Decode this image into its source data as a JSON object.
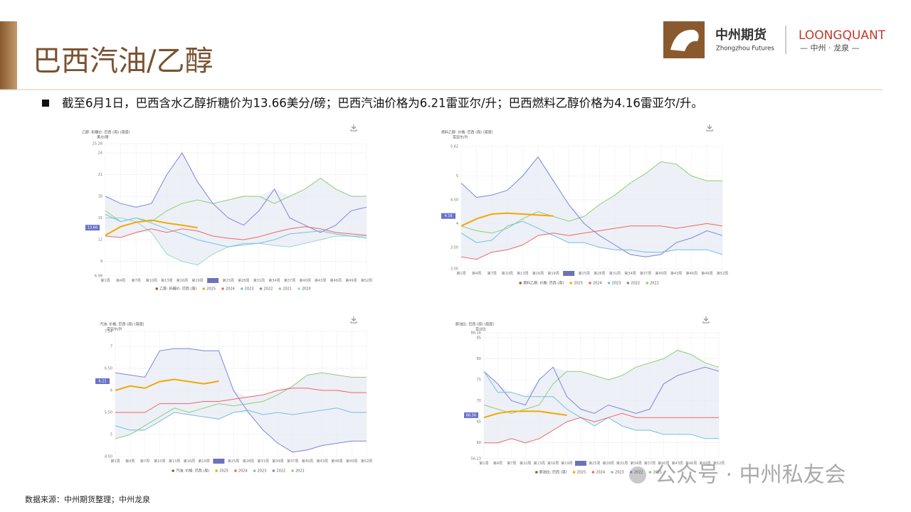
{
  "header": {
    "title": "巴西汽油/乙醇",
    "logo_cn": "中州期货",
    "logo_en": "Zhongzhou Futures",
    "logo2_en": "LOONGQUANT",
    "logo2_cn": "— 中州 · 龙泉 —"
  },
  "bullet": "截至6月1日，巴西含水乙醇折糖价为13.66美分/磅；巴西汽油价格为6.21雷亚尔/升；巴西燃料乙醇价格为4.16雷亚尔/升。",
  "source": "数据来源：中州期货整理；中州龙泉",
  "watermark": "公众号 · 中州私友会",
  "chart_data": [
    {
      "type": "line",
      "title": "乙醇: 折糖价: 巴西 (周) (周度)",
      "unit": "美分/磅",
      "legend_label": "乙醇: 折糖价: 巴西 (周)",
      "legend_color": "#a0522d",
      "categories": [
        "第1周",
        "第4周",
        "第7周",
        "第10周",
        "第13周",
        "第16周",
        "第19周",
        "第22周",
        "第25周",
        "第28周",
        "第31周",
        "第34周",
        "第37周",
        "第40周",
        "第43周",
        "第46周",
        "第49周",
        "第52周"
      ],
      "ylim": [
        6.99,
        25.28
      ],
      "yticks": [
        6.99,
        9,
        12,
        15,
        18,
        21,
        24,
        25.28
      ],
      "grid": true,
      "series": [
        {
          "name": "2025",
          "color": "#f2a900",
          "values": [
            12.6,
            13.8,
            14.4,
            14.7,
            14.3,
            14.0,
            13.66,
            null,
            null,
            null,
            null,
            null,
            null,
            null,
            null,
            null,
            null,
            null
          ]
        },
        {
          "name": "2024",
          "color": "#ee6666",
          "values": [
            12.5,
            12.3,
            13,
            13.5,
            13,
            13.5,
            13.2,
            12.5,
            12.2,
            12,
            12.4,
            13,
            13.5,
            13.8,
            13.5,
            13,
            12.8,
            12.6
          ]
        },
        {
          "name": "2023",
          "color": "#73c0de",
          "values": [
            15.5,
            14.5,
            15,
            14.3,
            13.5,
            12.8,
            12,
            11.5,
            11,
            11.3,
            11.5,
            12,
            12.8,
            13,
            13.2,
            12.8,
            12.5,
            12.2
          ]
        },
        {
          "name": "2022",
          "color": "#7f84d6",
          "values": [
            18,
            17,
            16.5,
            17,
            21,
            24,
            20,
            17,
            15,
            14,
            16,
            19,
            15,
            14,
            13,
            14,
            16,
            16.5
          ]
        },
        {
          "name": "2021",
          "color": "#91cc75",
          "values": [
            16,
            14.5,
            15,
            14.5,
            16,
            17,
            17.5,
            17,
            17.5,
            18,
            18,
            17,
            18,
            19,
            20.5,
            19,
            18,
            18
          ]
        },
        {
          "name": "2020",
          "color": "#9ad6c8",
          "values": [
            15,
            15,
            14.5,
            13,
            10,
            9,
            8.5,
            10,
            11,
            11.5,
            11.5,
            11.2,
            11,
            11.5,
            12,
            12.5,
            12.5,
            12.5
          ]
        }
      ]
    },
    {
      "type": "line",
      "title": "燃料乙醇: 价格: 巴西 (周) (周度)",
      "unit": "雷亚尔/升",
      "legend_label": "燃料乙醇: 价格: 巴西 (周)",
      "legend_color": "#a0522d",
      "categories": [
        "第1周",
        "第4周",
        "第7周",
        "第10周",
        "第13周",
        "第16周",
        "第19周",
        "第22周",
        "第25周",
        "第28周",
        "第31周",
        "第34周",
        "第37周",
        "第40周",
        "第43周",
        "第46周",
        "第49周",
        "第52周"
      ],
      "ylim": [
        3.05,
        5.62
      ],
      "yticks": [
        3.05,
        {
          "value": 3.5,
          "label": "3.50"
        },
        4,
        {
          "value": 4.5,
          "label": "4.50"
        },
        5,
        5.62
      ],
      "grid": true,
      "series": [
        {
          "name": "2025",
          "color": "#f2a900",
          "values": [
            3.95,
            4.1,
            4.2,
            4.22,
            4.2,
            4.18,
            4.16,
            null,
            null,
            null,
            null,
            null,
            null,
            null,
            null,
            null,
            null,
            null
          ]
        },
        {
          "name": "2024",
          "color": "#ee6666",
          "values": [
            3.3,
            3.25,
            3.4,
            3.45,
            3.55,
            3.75,
            3.8,
            3.75,
            3.8,
            3.85,
            3.9,
            3.95,
            3.95,
            3.95,
            3.9,
            3.95,
            4.0,
            3.95
          ]
        },
        {
          "name": "2023",
          "color": "#73c0de",
          "values": [
            3.8,
            3.6,
            3.65,
            3.95,
            4.05,
            3.9,
            3.75,
            3.6,
            3.6,
            3.5,
            3.45,
            3.45,
            3.4,
            3.4,
            3.45,
            3.45,
            3.45,
            3.35
          ]
        },
        {
          "name": "2022",
          "color": "#7f84d6",
          "values": [
            4.85,
            4.55,
            4.6,
            4.7,
            5.0,
            5.4,
            4.9,
            4.4,
            4.0,
            3.75,
            3.55,
            3.35,
            3.3,
            3.35,
            3.6,
            3.7,
            3.85,
            3.75
          ]
        },
        {
          "name": "2021",
          "color": "#91cc75",
          "values": [
            3.95,
            3.85,
            3.8,
            3.9,
            4.1,
            4.25,
            4.15,
            4.05,
            4.15,
            4.4,
            4.6,
            4.85,
            5.05,
            5.3,
            5.25,
            5.0,
            4.9,
            4.9
          ]
        }
      ]
    },
    {
      "type": "line",
      "title": "汽油: 价格: 巴西 (周) (周度)",
      "unit": "雷亚尔/升",
      "legend_label": "汽油: 价格: 巴西 (周)",
      "legend_color": "#a0522d",
      "categories": [
        "第1周",
        "第4周",
        "第7周",
        "第10周",
        "第13周",
        "第16周",
        "第19周",
        "第22周",
        "第25周",
        "第28周",
        "第31周",
        "第34周",
        "第37周",
        "第40周",
        "第43周",
        "第46周",
        "第49周",
        "第52周"
      ],
      "ylim": [
        4.5,
        7.34
      ],
      "yticks": [
        {
          "value": 4.5,
          "label": "4.50"
        },
        5,
        {
          "value": 5.5,
          "label": "5.50"
        },
        6,
        {
          "value": 6.5,
          "label": "6.50"
        },
        7,
        7.34
      ],
      "grid": true,
      "series": [
        {
          "name": "2025",
          "color": "#f2a900",
          "values": [
            6.0,
            6.1,
            6.05,
            6.2,
            6.25,
            6.2,
            6.15,
            6.21,
            null,
            null,
            null,
            null,
            null,
            null,
            null,
            null,
            null,
            null
          ]
        },
        {
          "name": "2024",
          "color": "#ee6666",
          "values": [
            5.5,
            5.5,
            5.5,
            5.7,
            5.7,
            5.7,
            5.75,
            5.75,
            5.8,
            5.85,
            5.9,
            6.0,
            6.05,
            6.05,
            6.0,
            6.0,
            5.95,
            5.95
          ]
        },
        {
          "name": "2023",
          "color": "#73c0de",
          "values": [
            5.2,
            5.1,
            5.1,
            5.3,
            5.5,
            5.45,
            5.4,
            5.35,
            5.5,
            5.55,
            5.45,
            5.5,
            5.45,
            5.5,
            5.55,
            5.6,
            5.5,
            5.5
          ]
        },
        {
          "name": "2022",
          "color": "#7f84d6",
          "values": [
            6.4,
            6.35,
            6.3,
            6.9,
            6.95,
            6.95,
            6.9,
            6.9,
            6.0,
            5.5,
            5.1,
            4.8,
            4.6,
            4.65,
            4.75,
            4.8,
            4.85,
            4.85
          ]
        },
        {
          "name": "2021",
          "color": "#91cc75",
          "values": [
            4.9,
            5.0,
            5.2,
            5.4,
            5.6,
            5.5,
            5.6,
            5.7,
            5.65,
            5.7,
            5.75,
            5.9,
            6.1,
            6.35,
            6.4,
            6.35,
            6.3,
            6.3
          ]
        }
      ]
    },
    {
      "type": "line",
      "title": "醇油比: 巴西 (周) (周度)",
      "unit": "百分比",
      "legend_label": "醇油比: 巴西 (周)",
      "legend_color": "#a0522d",
      "categories": [
        "第1周",
        "第4周",
        "第7周",
        "第10周",
        "第13周",
        "第16周",
        "第19周",
        "第22周",
        "第25周",
        "第28周",
        "第31周",
        "第34周",
        "第37周",
        "第40周",
        "第43周",
        "第46周",
        "第49周",
        "第52周"
      ],
      "ylim": [
        56.23,
        86.16
      ],
      "yticks": [
        56.23,
        60,
        65,
        70,
        75,
        80,
        85,
        86.16
      ],
      "grid": true,
      "series": [
        {
          "name": "2025",
          "color": "#f2a900",
          "values": [
            66,
            67,
            67.5,
            67.5,
            67.5,
            67,
            66.56,
            null,
            null,
            null,
            null,
            null,
            null,
            null,
            null,
            null,
            null,
            null
          ]
        },
        {
          "name": "2024",
          "color": "#ee6666",
          "values": [
            60,
            60,
            61,
            60,
            61,
            63,
            65,
            66,
            65,
            66,
            67,
            66,
            66,
            66,
            66,
            66,
            66,
            66
          ]
        },
        {
          "name": "2023",
          "color": "#73c0de",
          "values": [
            77,
            72,
            72,
            71,
            71,
            71,
            68,
            66,
            64,
            66,
            64,
            63,
            63,
            62,
            62,
            62,
            61,
            61
          ]
        },
        {
          "name": "2022",
          "color": "#7f84d6",
          "values": [
            77,
            74,
            70,
            69,
            75,
            78,
            71,
            68,
            67,
            69,
            68,
            67,
            68,
            74,
            76,
            77,
            78,
            77
          ]
        },
        {
          "name": "2021",
          "color": "#91cc75",
          "values": [
            69,
            68,
            67,
            68,
            69,
            74,
            77,
            77,
            76,
            75,
            76,
            78,
            79,
            80,
            82,
            81,
            79,
            78
          ]
        }
      ]
    }
  ]
}
